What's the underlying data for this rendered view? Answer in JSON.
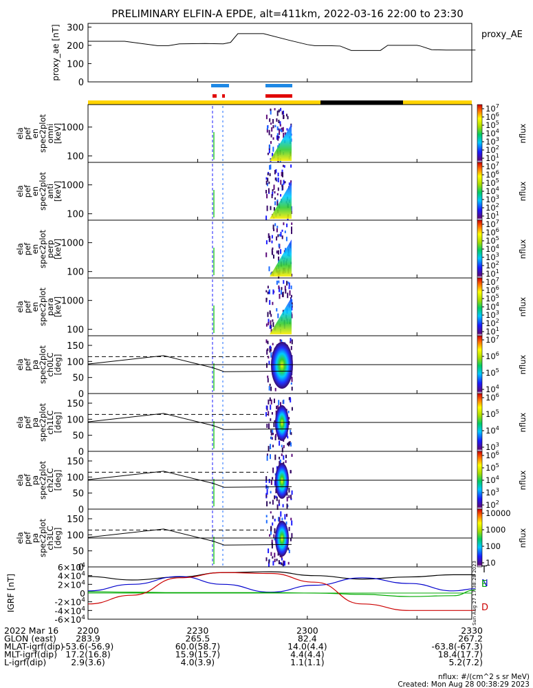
{
  "title": "PRELIMINARY ELFIN-A EPDE, alt=411km, 2022-03-16 22:00 to 23:30",
  "colors": {
    "orbit_day": "#ffd400",
    "orbit_night": "#000000",
    "science_blue": "#1e88e5",
    "science_red": "#e00000",
    "igrf_T": "#000000",
    "igrf_N": "#0000cc",
    "igrf_E": "#00aa00",
    "igrf_D": "#cc0000"
  },
  "colorbar_labels": [
    "nflux",
    "nflux",
    "nflux",
    "nflux",
    "nflux",
    "nflux",
    "nflux",
    "nflux"
  ],
  "chart_data": [
    {
      "type": "line",
      "panel": "proxy_ae",
      "ylabel": "proxy_ae [nT]",
      "series_label": "proxy_AE",
      "ylim": [
        0,
        320
      ],
      "yticks": [
        "0",
        "100",
        "200",
        "300"
      ],
      "x_minutes": [
        0,
        10,
        19,
        22,
        25,
        32,
        37,
        39,
        41,
        48,
        55,
        60,
        62,
        66,
        69,
        72,
        80,
        82,
        90,
        91,
        94,
        98,
        101,
        102,
        103,
        106
      ],
      "values": [
        222,
        222,
        198,
        198,
        208,
        210,
        208,
        216,
        264,
        264,
        228,
        204,
        198,
        198,
        196,
        172,
        172,
        200,
        200,
        196,
        176,
        174,
        174,
        174,
        174,
        174
      ]
    },
    {
      "type": "heatmap",
      "panel": "ela pef en spec2plot omni [keV]",
      "ylabel_lines": [
        "ela",
        "pef",
        "en",
        "spec2plot",
        "omni",
        "[keV]"
      ],
      "yscale": "log",
      "yticks": [
        "100",
        "1000"
      ],
      "colorbar_ticks": [
        "10^1",
        "10^2",
        "10^3",
        "10^4",
        "10^5",
        "10^6",
        "10^7"
      ],
      "colorbar_label": "nflux"
    },
    {
      "type": "heatmap",
      "panel": "ela pef en spec2plot anti [keV]",
      "ylabel_lines": [
        "ela",
        "pef",
        "en",
        "spec2plot",
        "anti",
        "[keV]"
      ],
      "yscale": "log",
      "yticks": [
        "100",
        "1000"
      ],
      "colorbar_ticks": [
        "10^1",
        "10^2",
        "10^3",
        "10^4",
        "10^5",
        "10^6",
        "10^7"
      ],
      "colorbar_label": "nflux"
    },
    {
      "type": "heatmap",
      "panel": "ela pef en spec2plot perp [keV]",
      "ylabel_lines": [
        "ela",
        "pef",
        "en",
        "spec2plot",
        "perp",
        "[keV]"
      ],
      "yscale": "log",
      "yticks": [
        "100",
        "1000"
      ],
      "colorbar_ticks": [
        "10^1",
        "10^2",
        "10^3",
        "10^4",
        "10^5",
        "10^6",
        "10^7"
      ],
      "colorbar_label": "nflux"
    },
    {
      "type": "heatmap",
      "panel": "ela pef en spec2plot para [keV]",
      "ylabel_lines": [
        "ela",
        "pef",
        "en",
        "spec2plot",
        "para",
        "[keV]"
      ],
      "yscale": "log",
      "yticks": [
        "100",
        "1000"
      ],
      "colorbar_ticks": [
        "10^1",
        "10^2",
        "10^3",
        "10^4",
        "10^5",
        "10^6",
        "10^7"
      ],
      "colorbar_label": "nflux"
    },
    {
      "type": "heatmap",
      "panel": "ela pef pa spec2plot ch0LC [deg]",
      "ylabel_lines": [
        "ela",
        "pef",
        "pa",
        "spec2plot",
        "ch0LC",
        "[deg]"
      ],
      "ylim": [
        0,
        180
      ],
      "yticks": [
        "0",
        "50",
        "100",
        "150"
      ],
      "colorbar_ticks": [
        "10^4",
        "10^5",
        "10^6",
        "10^7"
      ],
      "colorbar_label": "nflux"
    },
    {
      "type": "heatmap",
      "panel": "ela pef pa spec2plot ch1LC [deg]",
      "ylabel_lines": [
        "ela",
        "pef",
        "pa",
        "spec2plot",
        "ch1LC",
        "[deg]"
      ],
      "ylim": [
        0,
        180
      ],
      "yticks": [
        "0",
        "50",
        "100",
        "150"
      ],
      "colorbar_ticks": [
        "10^3",
        "10^4",
        "10^5",
        "10^6"
      ],
      "colorbar_label": "nflux"
    },
    {
      "type": "heatmap",
      "panel": "ela pef pa spec2plot ch2LC [deg]",
      "ylabel_lines": [
        "ela",
        "pef",
        "pa",
        "spec2plot",
        "ch2LC",
        "[deg]"
      ],
      "ylim": [
        0,
        180
      ],
      "yticks": [
        "0",
        "50",
        "100",
        "150"
      ],
      "colorbar_ticks": [
        "10^2",
        "10^3",
        "10^4",
        "10^5",
        "10^6"
      ],
      "colorbar_label": "nflux"
    },
    {
      "type": "heatmap",
      "panel": "ela pef pa spec2plot ch3LC [deg]",
      "ylabel_lines": [
        "ela",
        "pef",
        "pa",
        "spec2plot",
        "ch3LC",
        "[deg]"
      ],
      "ylim": [
        0,
        180
      ],
      "yticks": [
        "0",
        "50",
        "100",
        "150"
      ],
      "colorbar_ticks": [
        "10",
        "100",
        "1000",
        "10000"
      ],
      "colorbar_label": "nflux"
    },
    {
      "type": "line",
      "panel": "IGRF [nT]",
      "ylabel": "IGRF [nT]",
      "ylim": [
        -60000,
        60000
      ],
      "yticks": [
        "-6×10^4",
        "-4×10^4",
        "-2×10^4",
        "0",
        "2×10^4",
        "4×10^4",
        "6×10^4"
      ],
      "series": [
        {
          "name": "T",
          "x_minutes": [
            0,
            12,
            25,
            37,
            50,
            62,
            75,
            88,
            100,
            106
          ],
          "values": [
            38000,
            30000,
            37000,
            47000,
            49000,
            40000,
            32000,
            37000,
            42000,
            42000
          ]
        },
        {
          "name": "N",
          "x_minutes": [
            0,
            12,
            25,
            37,
            50,
            62,
            75,
            88,
            100,
            106
          ],
          "values": [
            5000,
            20000,
            38000,
            20000,
            2000,
            18000,
            35000,
            22000,
            5000,
            10000
          ]
        },
        {
          "name": "E",
          "x_minutes": [
            0,
            12,
            25,
            37,
            50,
            62,
            75,
            88,
            100,
            106
          ],
          "values": [
            3000,
            2000,
            1000,
            1000,
            1000,
            0,
            -3000,
            -8000,
            -6000,
            7000
          ]
        },
        {
          "name": "D",
          "x_minutes": [
            0,
            12,
            25,
            37,
            50,
            62,
            75,
            88,
            100,
            106
          ],
          "values": [
            -25000,
            -5000,
            35000,
            47000,
            45000,
            25000,
            -25000,
            -40000,
            -40000,
            -40000
          ]
        }
      ]
    }
  ],
  "xaxis": {
    "tick_minutes": [
      0,
      30,
      60,
      90
    ],
    "rows": [
      {
        "label": "2022 Mar 16",
        "values": [
          "2200",
          "2230",
          "2300",
          "2330"
        ]
      },
      {
        "label": "GLON (east)",
        "values": [
          "283.9",
          "265.5",
          "82.4",
          "267.2"
        ]
      },
      {
        "label": "MLAT-igrf(dip)",
        "values": [
          "-53.6(-56.9)",
          "60.0(58.7)",
          "14.0(4.4)",
          "-63.8(-67.3)"
        ]
      },
      {
        "label": "MLT-igrf(dip)",
        "values": [
          "17.2(16.8)",
          "15.9(15.7)",
          "4.4(4.4)",
          "18.4(17.7)"
        ]
      },
      {
        "label": "L-igrf(dip)",
        "values": [
          "2.9(3.6)",
          "4.0(3.9)",
          "1.1(1.1)",
          "5.2(7.2)"
        ]
      }
    ]
  },
  "footer": {
    "units": "nflux: #/(cm^2 s sr MeV)",
    "created": "Created: Mon Aug 28 00:38:29 2023",
    "side_stamp": "Sun Aug 27 17:38:28 2023"
  }
}
